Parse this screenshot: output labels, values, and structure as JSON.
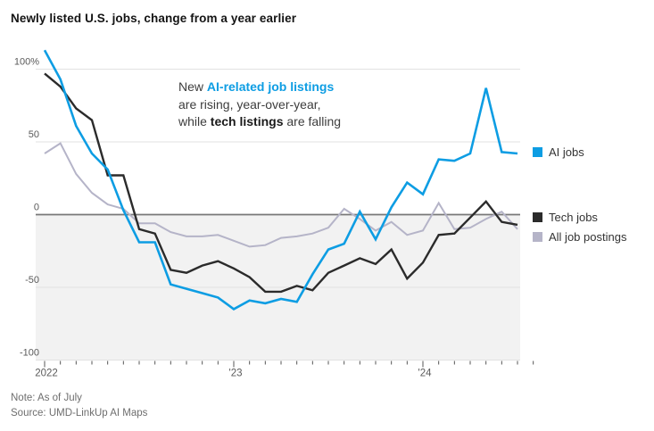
{
  "title": "Newly listed U.S. jobs, change from a year earlier",
  "annotation": {
    "line1_prefix": "New ",
    "line1_highlight": "AI-related job listings",
    "line2": "are rising, year-over-year,",
    "line3_prefix": "while ",
    "line3_bold": "tech listings",
    "line3_suffix": " are falling"
  },
  "legend": {
    "items": [
      {
        "label": "AI jobs",
        "color": "#0d9de3"
      },
      {
        "label": "Tech jobs",
        "color": "#2b2b2b"
      },
      {
        "label": "All job postings",
        "color": "#b5b4c8"
      }
    ]
  },
  "notes": {
    "note": "Note: As of July",
    "source": "Source: UMD-LinkUp AI Maps"
  },
  "chart_data": {
    "type": "line",
    "title": "Newly listed U.S. jobs, change from a year earlier",
    "x": [
      "2022-01",
      "2022-02",
      "2022-03",
      "2022-04",
      "2022-05",
      "2022-06",
      "2022-07",
      "2022-08",
      "2022-09",
      "2022-10",
      "2022-11",
      "2022-12",
      "2023-01",
      "2023-02",
      "2023-03",
      "2023-04",
      "2023-05",
      "2023-06",
      "2023-07",
      "2023-08",
      "2023-09",
      "2023-10",
      "2023-11",
      "2023-12",
      "2024-01",
      "2024-02",
      "2024-03",
      "2024-04",
      "2024-05",
      "2024-06",
      "2024-07"
    ],
    "series": [
      {
        "name": "AI jobs",
        "color": "#0d9de3",
        "values": [
          113,
          93,
          61,
          42,
          31,
          3,
          -19,
          -19,
          -48,
          -51,
          -54,
          -57,
          -65,
          -59,
          -61,
          -58,
          -60,
          -41,
          -24,
          -20,
          2,
          -17,
          5,
          22,
          14,
          38,
          37,
          42,
          87,
          43,
          42
        ]
      },
      {
        "name": "Tech jobs",
        "color": "#2b2b2b",
        "values": [
          97,
          88,
          73,
          65,
          27,
          27,
          -10,
          -13,
          -38,
          -40,
          -35,
          -32,
          -37,
          -43,
          -53,
          -53,
          -49,
          -52,
          -40,
          -35,
          -30,
          -34,
          -24,
          -44,
          -33,
          -14,
          -13,
          -2,
          9,
          -5,
          -7
        ]
      },
      {
        "name": "All job postings",
        "color": "#b5b4c8",
        "values": [
          42,
          49,
          28,
          15,
          7,
          4,
          -6,
          -6,
          -12,
          -15,
          -15,
          -14,
          -18,
          -22,
          -21,
          -16,
          -15,
          -13,
          -9,
          4,
          -3,
          -11,
          -5,
          -14,
          -11,
          8,
          -10,
          -9,
          -3,
          2,
          -10
        ]
      }
    ],
    "y_ticks": [
      {
        "value": 100,
        "label": "100%"
      },
      {
        "value": 50,
        "label": "50"
      },
      {
        "value": 0,
        "label": "0"
      },
      {
        "value": -50,
        "label": "-50"
      },
      {
        "value": -100,
        "label": "-100"
      }
    ],
    "x_year_ticks": [
      {
        "index": 0,
        "label": "2022"
      },
      {
        "index": 12,
        "label": "'23"
      },
      {
        "index": 24,
        "label": "'24"
      }
    ],
    "ylim": [
      -100,
      115
    ],
    "grid": true,
    "below_zero_shaded": true,
    "legend_position": "right",
    "xlabel": "",
    "ylabel": ""
  }
}
